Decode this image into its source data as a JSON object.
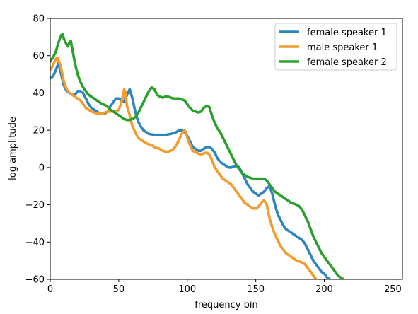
{
  "chart_data": {
    "type": "line",
    "title": "",
    "xlabel": "frequency bin",
    "ylabel": "log amplitude",
    "xlim": [
      0,
      257
    ],
    "ylim": [
      -60,
      80
    ],
    "xticks": [
      0,
      50,
      100,
      150,
      200,
      250
    ],
    "yticks": [
      -60,
      -40,
      -20,
      0,
      20,
      40,
      60,
      80
    ],
    "grid": false,
    "legend_position": "upper right",
    "series": [
      {
        "name": "female speaker 1",
        "color": "#2e86c1",
        "points": [
          [
            0,
            48
          ],
          [
            2,
            49
          ],
          [
            4,
            52
          ],
          [
            6,
            56
          ],
          [
            8,
            50
          ],
          [
            10,
            44
          ],
          [
            12,
            41
          ],
          [
            14,
            40
          ],
          [
            16,
            39
          ],
          [
            18,
            39
          ],
          [
            20,
            41
          ],
          [
            22,
            41
          ],
          [
            24,
            40
          ],
          [
            26,
            37
          ],
          [
            28,
            34
          ],
          [
            30,
            32
          ],
          [
            32,
            31
          ],
          [
            34,
            30
          ],
          [
            36,
            29
          ],
          [
            38,
            29
          ],
          [
            40,
            29
          ],
          [
            42,
            30
          ],
          [
            44,
            33
          ],
          [
            46,
            35
          ],
          [
            48,
            37
          ],
          [
            50,
            37
          ],
          [
            52,
            36
          ],
          [
            54,
            35
          ],
          [
            56,
            39
          ],
          [
            58,
            42
          ],
          [
            60,
            37
          ],
          [
            62,
            30
          ],
          [
            64,
            25
          ],
          [
            66,
            22
          ],
          [
            68,
            20
          ],
          [
            70,
            19
          ],
          [
            72,
            18
          ],
          [
            76,
            17.5
          ],
          [
            80,
            17.5
          ],
          [
            84,
            17.5
          ],
          [
            88,
            18
          ],
          [
            92,
            19
          ],
          [
            94,
            20
          ],
          [
            96,
            20
          ],
          [
            98,
            19
          ],
          [
            100,
            17
          ],
          [
            102,
            14
          ],
          [
            104,
            11
          ],
          [
            106,
            10
          ],
          [
            108,
            9
          ],
          [
            110,
            9
          ],
          [
            112,
            10
          ],
          [
            114,
            11
          ],
          [
            116,
            11
          ],
          [
            118,
            10
          ],
          [
            120,
            8
          ],
          [
            122,
            5
          ],
          [
            124,
            3
          ],
          [
            126,
            2
          ],
          [
            128,
            1
          ],
          [
            130,
            0
          ],
          [
            132,
            0
          ],
          [
            134,
            0.5
          ],
          [
            136,
            1
          ],
          [
            138,
            0
          ],
          [
            140,
            -3
          ],
          [
            142,
            -6
          ],
          [
            144,
            -9
          ],
          [
            146,
            -11
          ],
          [
            148,
            -13
          ],
          [
            150,
            -14
          ],
          [
            152,
            -15
          ],
          [
            154,
            -14
          ],
          [
            156,
            -13
          ],
          [
            158,
            -11
          ],
          [
            160,
            -10
          ],
          [
            162,
            -14
          ],
          [
            164,
            -20
          ],
          [
            166,
            -25
          ],
          [
            168,
            -28
          ],
          [
            170,
            -31
          ],
          [
            172,
            -33
          ],
          [
            174,
            -34
          ],
          [
            176,
            -35
          ],
          [
            178,
            -36
          ],
          [
            180,
            -37
          ],
          [
            182,
            -38
          ],
          [
            184,
            -39
          ],
          [
            186,
            -41
          ],
          [
            188,
            -44
          ],
          [
            190,
            -47
          ],
          [
            192,
            -50
          ],
          [
            194,
            -52
          ],
          [
            196,
            -54
          ],
          [
            198,
            -56
          ],
          [
            200,
            -57
          ],
          [
            202,
            -59
          ],
          [
            204,
            -60
          ],
          [
            205,
            -61
          ]
        ]
      },
      {
        "name": "male speaker 1",
        "color": "#f39c2e",
        "points": [
          [
            0,
            52
          ],
          [
            2,
            55
          ],
          [
            4,
            58
          ],
          [
            5,
            59
          ],
          [
            6,
            58
          ],
          [
            8,
            53
          ],
          [
            10,
            46
          ],
          [
            12,
            42
          ],
          [
            14,
            40
          ],
          [
            16,
            39
          ],
          [
            18,
            38
          ],
          [
            20,
            37
          ],
          [
            22,
            36
          ],
          [
            24,
            34
          ],
          [
            26,
            32
          ],
          [
            28,
            31
          ],
          [
            30,
            30
          ],
          [
            32,
            29.5
          ],
          [
            34,
            29
          ],
          [
            36,
            29
          ],
          [
            38,
            29
          ],
          [
            40,
            29.5
          ],
          [
            42,
            30
          ],
          [
            44,
            30
          ],
          [
            46,
            30
          ],
          [
            48,
            30
          ],
          [
            50,
            31
          ],
          [
            52,
            35
          ],
          [
            54,
            42
          ],
          [
            55,
            40
          ],
          [
            56,
            33
          ],
          [
            58,
            28
          ],
          [
            60,
            22
          ],
          [
            62,
            19
          ],
          [
            64,
            16
          ],
          [
            66,
            15
          ],
          [
            68,
            14
          ],
          [
            70,
            13
          ],
          [
            72,
            12.5
          ],
          [
            74,
            12
          ],
          [
            76,
            11
          ],
          [
            78,
            10.5
          ],
          [
            80,
            10
          ],
          [
            82,
            9
          ],
          [
            84,
            8.5
          ],
          [
            86,
            8.5
          ],
          [
            88,
            9
          ],
          [
            90,
            10
          ],
          [
            92,
            12
          ],
          [
            94,
            15
          ],
          [
            96,
            18
          ],
          [
            98,
            20
          ],
          [
            99,
            19
          ],
          [
            100,
            16
          ],
          [
            102,
            12
          ],
          [
            104,
            9
          ],
          [
            106,
            8
          ],
          [
            108,
            7.5
          ],
          [
            110,
            7
          ],
          [
            112,
            7.5
          ],
          [
            114,
            8
          ],
          [
            116,
            7
          ],
          [
            118,
            4
          ],
          [
            120,
            0
          ],
          [
            122,
            -2
          ],
          [
            124,
            -4
          ],
          [
            126,
            -6
          ],
          [
            128,
            -7
          ],
          [
            130,
            -8
          ],
          [
            132,
            -9
          ],
          [
            134,
            -11
          ],
          [
            136,
            -13
          ],
          [
            138,
            -15
          ],
          [
            140,
            -17
          ],
          [
            142,
            -19
          ],
          [
            144,
            -20
          ],
          [
            146,
            -21
          ],
          [
            148,
            -22
          ],
          [
            150,
            -22
          ],
          [
            152,
            -21
          ],
          [
            154,
            -19
          ],
          [
            156,
            -17.5
          ],
          [
            158,
            -20
          ],
          [
            160,
            -27
          ],
          [
            162,
            -32
          ],
          [
            164,
            -36
          ],
          [
            166,
            -39
          ],
          [
            168,
            -42
          ],
          [
            170,
            -44
          ],
          [
            172,
            -46
          ],
          [
            174,
            -47
          ],
          [
            176,
            -48
          ],
          [
            178,
            -49
          ],
          [
            180,
            -50
          ],
          [
            182,
            -50.5
          ],
          [
            184,
            -51
          ],
          [
            186,
            -52
          ],
          [
            188,
            -54
          ],
          [
            190,
            -56
          ],
          [
            192,
            -58
          ],
          [
            194,
            -60
          ],
          [
            195,
            -61
          ]
        ]
      },
      {
        "name": "female speaker 2",
        "color": "#2ca02c",
        "points": [
          [
            0,
            57
          ],
          [
            2,
            59
          ],
          [
            4,
            62
          ],
          [
            6,
            67
          ],
          [
            8,
            71
          ],
          [
            9,
            71.5
          ],
          [
            10,
            69
          ],
          [
            12,
            66
          ],
          [
            13,
            65
          ],
          [
            14,
            67
          ],
          [
            15,
            68
          ],
          [
            16,
            64
          ],
          [
            18,
            56
          ],
          [
            20,
            50
          ],
          [
            22,
            46
          ],
          [
            24,
            43
          ],
          [
            26,
            41
          ],
          [
            28,
            39
          ],
          [
            30,
            38
          ],
          [
            32,
            37
          ],
          [
            34,
            36
          ],
          [
            36,
            35
          ],
          [
            38,
            34
          ],
          [
            40,
            33.5
          ],
          [
            42,
            32.5
          ],
          [
            44,
            31
          ],
          [
            46,
            30
          ],
          [
            48,
            29
          ],
          [
            50,
            28
          ],
          [
            52,
            27
          ],
          [
            54,
            26
          ],
          [
            56,
            25.5
          ],
          [
            58,
            25.5
          ],
          [
            60,
            26
          ],
          [
            62,
            27
          ],
          [
            64,
            29
          ],
          [
            66,
            32
          ],
          [
            68,
            35
          ],
          [
            70,
            38
          ],
          [
            72,
            41
          ],
          [
            74,
            43
          ],
          [
            76,
            42
          ],
          [
            78,
            39
          ],
          [
            80,
            38
          ],
          [
            82,
            37.5
          ],
          [
            84,
            38
          ],
          [
            86,
            38
          ],
          [
            88,
            37.5
          ],
          [
            90,
            37
          ],
          [
            92,
            37
          ],
          [
            94,
            37
          ],
          [
            96,
            36.5
          ],
          [
            98,
            36
          ],
          [
            100,
            34
          ],
          [
            102,
            32
          ],
          [
            104,
            30.5
          ],
          [
            106,
            30
          ],
          [
            108,
            29.5
          ],
          [
            110,
            30
          ],
          [
            112,
            32
          ],
          [
            114,
            33
          ],
          [
            116,
            32.5
          ],
          [
            118,
            28
          ],
          [
            120,
            24
          ],
          [
            122,
            21
          ],
          [
            124,
            19
          ],
          [
            126,
            16
          ],
          [
            128,
            13
          ],
          [
            130,
            10
          ],
          [
            132,
            7
          ],
          [
            134,
            4
          ],
          [
            136,
            1
          ],
          [
            138,
            -1
          ],
          [
            140,
            -3
          ],
          [
            142,
            -4
          ],
          [
            144,
            -5
          ],
          [
            146,
            -5.5
          ],
          [
            148,
            -6
          ],
          [
            150,
            -6
          ],
          [
            152,
            -6
          ],
          [
            154,
            -6
          ],
          [
            156,
            -6
          ],
          [
            158,
            -7
          ],
          [
            160,
            -9
          ],
          [
            162,
            -11
          ],
          [
            164,
            -13
          ],
          [
            166,
            -14
          ],
          [
            168,
            -15
          ],
          [
            170,
            -16
          ],
          [
            172,
            -17
          ],
          [
            174,
            -18
          ],
          [
            176,
            -19
          ],
          [
            178,
            -19.5
          ],
          [
            180,
            -20
          ],
          [
            182,
            -21
          ],
          [
            184,
            -23
          ],
          [
            186,
            -26
          ],
          [
            188,
            -29
          ],
          [
            190,
            -33
          ],
          [
            192,
            -37
          ],
          [
            194,
            -40
          ],
          [
            196,
            -43
          ],
          [
            198,
            -46
          ],
          [
            200,
            -48
          ],
          [
            202,
            -50
          ],
          [
            204,
            -52
          ],
          [
            206,
            -54
          ],
          [
            208,
            -56
          ],
          [
            210,
            -58
          ],
          [
            212,
            -59
          ],
          [
            214,
            -60
          ],
          [
            215,
            -61
          ]
        ]
      }
    ]
  }
}
